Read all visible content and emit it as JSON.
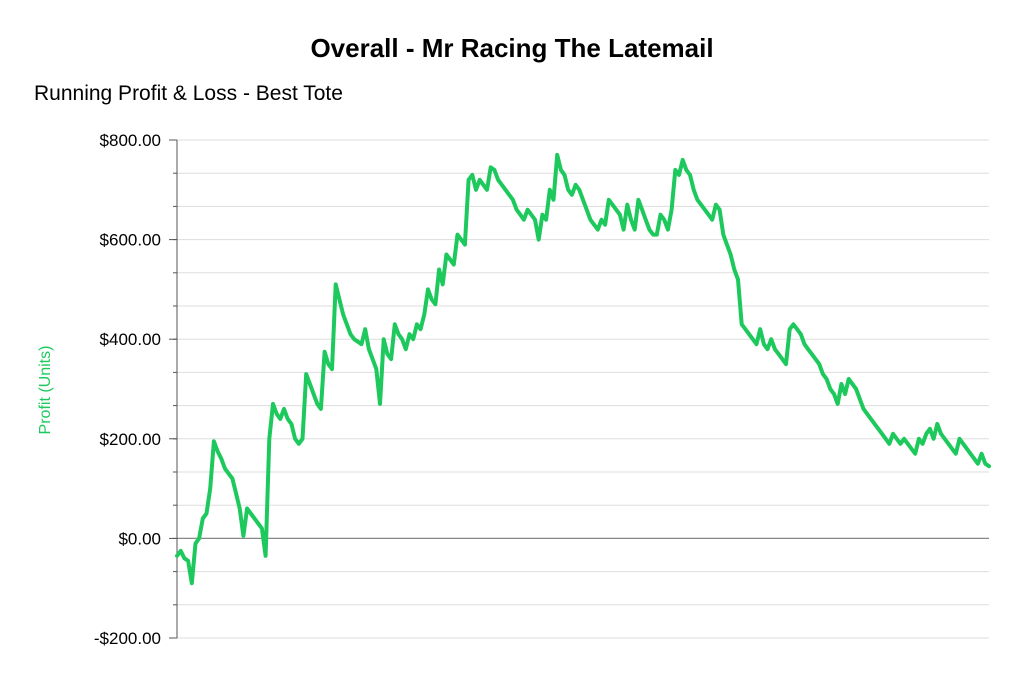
{
  "chart_data": {
    "type": "line",
    "title": "Overall - Mr Racing The Latemail",
    "subtitle": "Running Profit & Loss - Best Tote",
    "xlabel": "",
    "ylabel": "Profit (Units)",
    "ylim": [
      -200,
      800
    ],
    "yticks": [
      -200,
      0,
      200,
      400,
      600,
      800
    ],
    "ytick_labels": [
      "-$200.00",
      "$0.00",
      "$200.00",
      "$400.00",
      "$600.00",
      "$800.00"
    ],
    "grid": true,
    "legend": "none",
    "colors": {
      "line": "#1dc95c",
      "ylabel": "#1dc95c",
      "grid": "#dddddd",
      "zero": "#888888"
    },
    "series": [
      {
        "values": [
          -35,
          -25,
          -40,
          -45,
          -90,
          -10,
          0,
          40,
          50,
          100,
          195,
          175,
          160,
          140,
          130,
          120,
          90,
          60,
          5,
          60,
          50,
          40,
          30,
          20,
          -35,
          200,
          270,
          250,
          240,
          260,
          240,
          230,
          200,
          190,
          200,
          330,
          310,
          290,
          270,
          260,
          375,
          350,
          340,
          510,
          480,
          450,
          430,
          410,
          400,
          395,
          390,
          420,
          380,
          360,
          340,
          270,
          400,
          370,
          360,
          430,
          410,
          400,
          380,
          410,
          400,
          430,
          420,
          450,
          500,
          480,
          470,
          540,
          510,
          570,
          560,
          550,
          610,
          600,
          590,
          720,
          730,
          700,
          720,
          710,
          700,
          745,
          740,
          720,
          710,
          700,
          690,
          680,
          660,
          650,
          640,
          660,
          650,
          640,
          600,
          650,
          640,
          700,
          680,
          770,
          740,
          730,
          700,
          690,
          710,
          700,
          680,
          660,
          640,
          630,
          620,
          640,
          630,
          680,
          670,
          660,
          650,
          620,
          670,
          640,
          620,
          680,
          660,
          640,
          620,
          610,
          610,
          650,
          640,
          620,
          660,
          740,
          730,
          760,
          740,
          730,
          700,
          680,
          670,
          660,
          650,
          640,
          670,
          660,
          610,
          590,
          570,
          540,
          520,
          430,
          420,
          410,
          400,
          390,
          420,
          390,
          380,
          400,
          380,
          370,
          360,
          350,
          420,
          430,
          420,
          410,
          390,
          380,
          370,
          360,
          350,
          330,
          320,
          300,
          290,
          270,
          310,
          290,
          320,
          310,
          300,
          280,
          260,
          250,
          240,
          230,
          220,
          210,
          200,
          190,
          210,
          200,
          190,
          200,
          190,
          180,
          170,
          200,
          190,
          210,
          220,
          200,
          230,
          210,
          200,
          190,
          180,
          170,
          200,
          190,
          180,
          170,
          160,
          150,
          170,
          150,
          145
        ]
      }
    ]
  }
}
